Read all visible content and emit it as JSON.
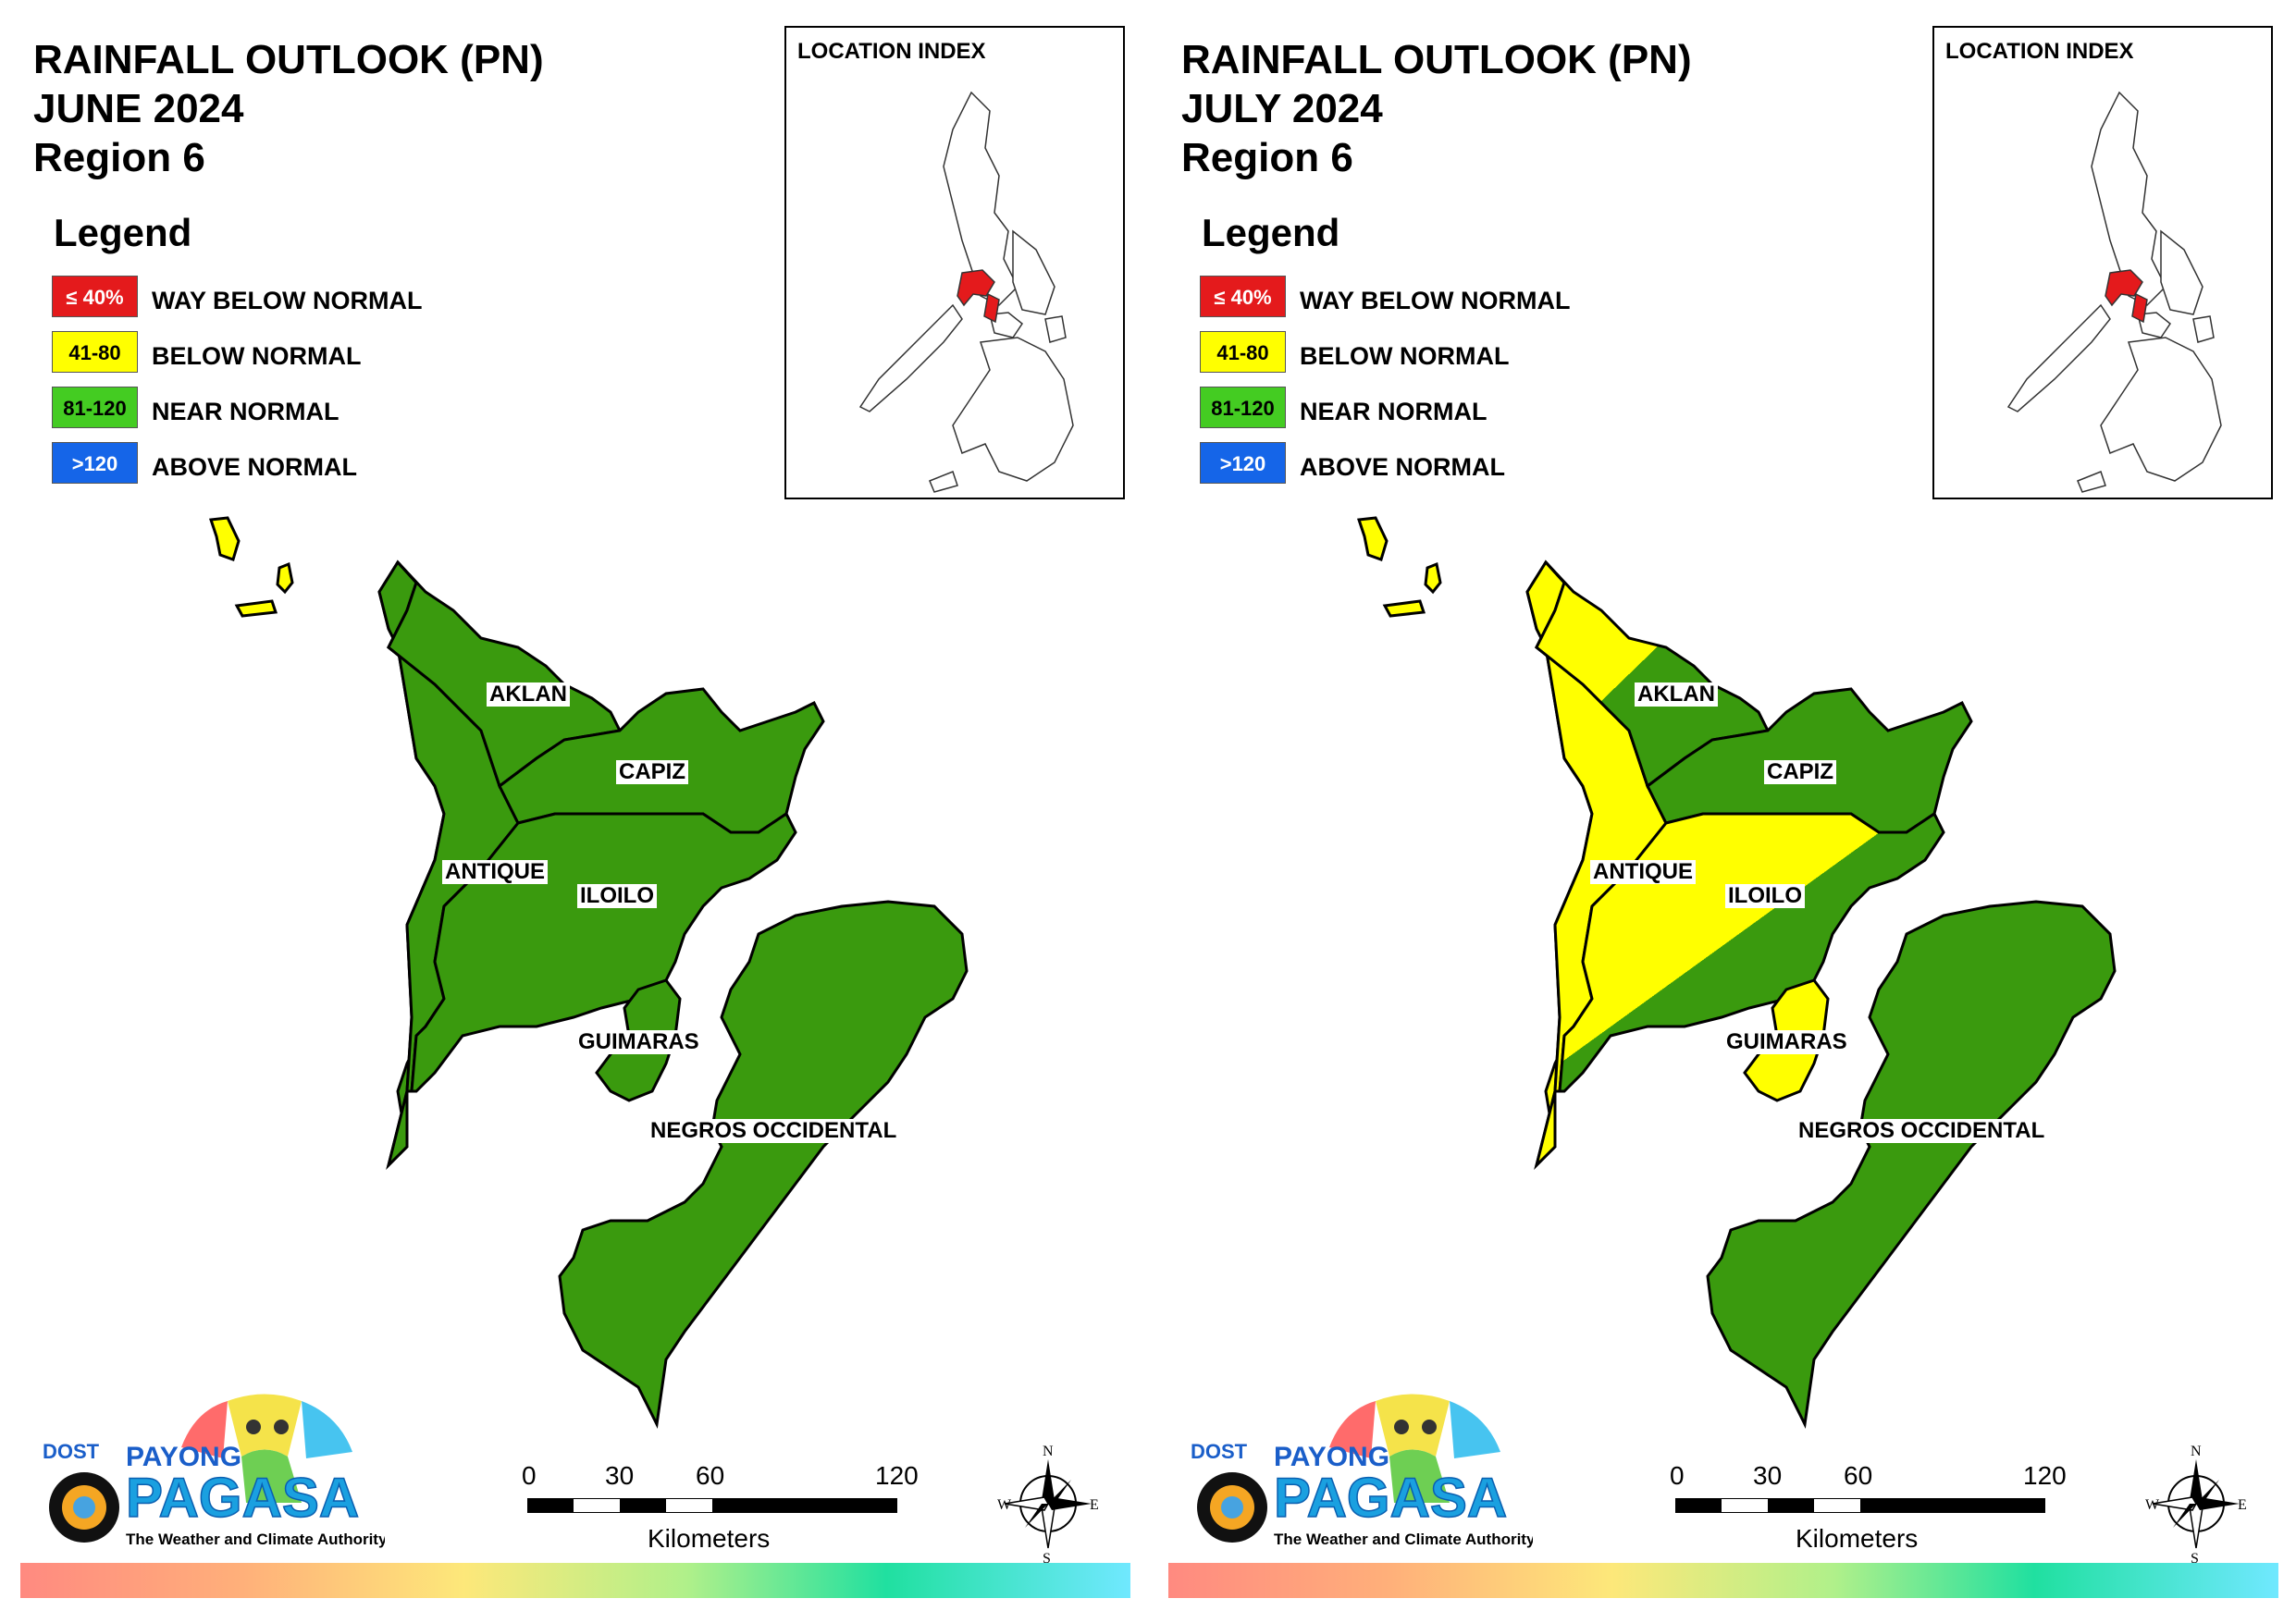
{
  "panels": [
    {
      "title_line1": "RAINFALL OUTLOOK (PN)",
      "title_line2": "JUNE 2024",
      "title_line3": "Region 6",
      "provinces": {
        "antique": "near",
        "aklan": "near",
        "capiz": "near",
        "iloilo": "near",
        "guimaras": "near",
        "negros": "near",
        "islands": "below"
      }
    },
    {
      "title_line1": "RAINFALL OUTLOOK (PN)",
      "title_line2": "JULY 2024",
      "title_line3": "Region 6",
      "provinces": {
        "antique": "below",
        "aklan": "mixed",
        "capiz": "near",
        "iloilo": "mixed",
        "guimaras": "below",
        "negros": "near",
        "islands": "below"
      }
    }
  ],
  "legend": {
    "title": "Legend",
    "items": [
      {
        "swatch": "≤ 40%",
        "label": "WAY BELOW NORMAL",
        "color": "#e41a1c"
      },
      {
        "swatch": "41-80",
        "label": "BELOW NORMAL",
        "color": "#ffff00"
      },
      {
        "swatch": "81-120",
        "label": "NEAR NORMAL",
        "color": "#44cc22"
      },
      {
        "swatch": ">120",
        "label": "ABOVE NORMAL",
        "color": "#1565e8"
      }
    ]
  },
  "location_index": {
    "title": "LOCATION INDEX"
  },
  "province_labels": {
    "aklan": "AKLAN",
    "capiz": "CAPIZ",
    "antique": "ANTIQUE",
    "iloilo": "ILOILO",
    "guimaras": "GUIMARAS",
    "negros": "NEGROS OCCIDENTAL"
  },
  "map_colors": {
    "near": "#3a9a0e",
    "below": "#ffff00",
    "highlight": "#e41a1c"
  },
  "scale": {
    "ticks": [
      "0",
      "30",
      "60",
      "120"
    ],
    "unit": "Kilometers"
  },
  "compass": {
    "n": "N",
    "s": "S",
    "e": "E",
    "w": "W"
  },
  "logo": {
    "dost": "DOST",
    "payong": "PAYONG",
    "pagasa": "PAGASA",
    "tagline": "The Weather and Climate Authority"
  }
}
